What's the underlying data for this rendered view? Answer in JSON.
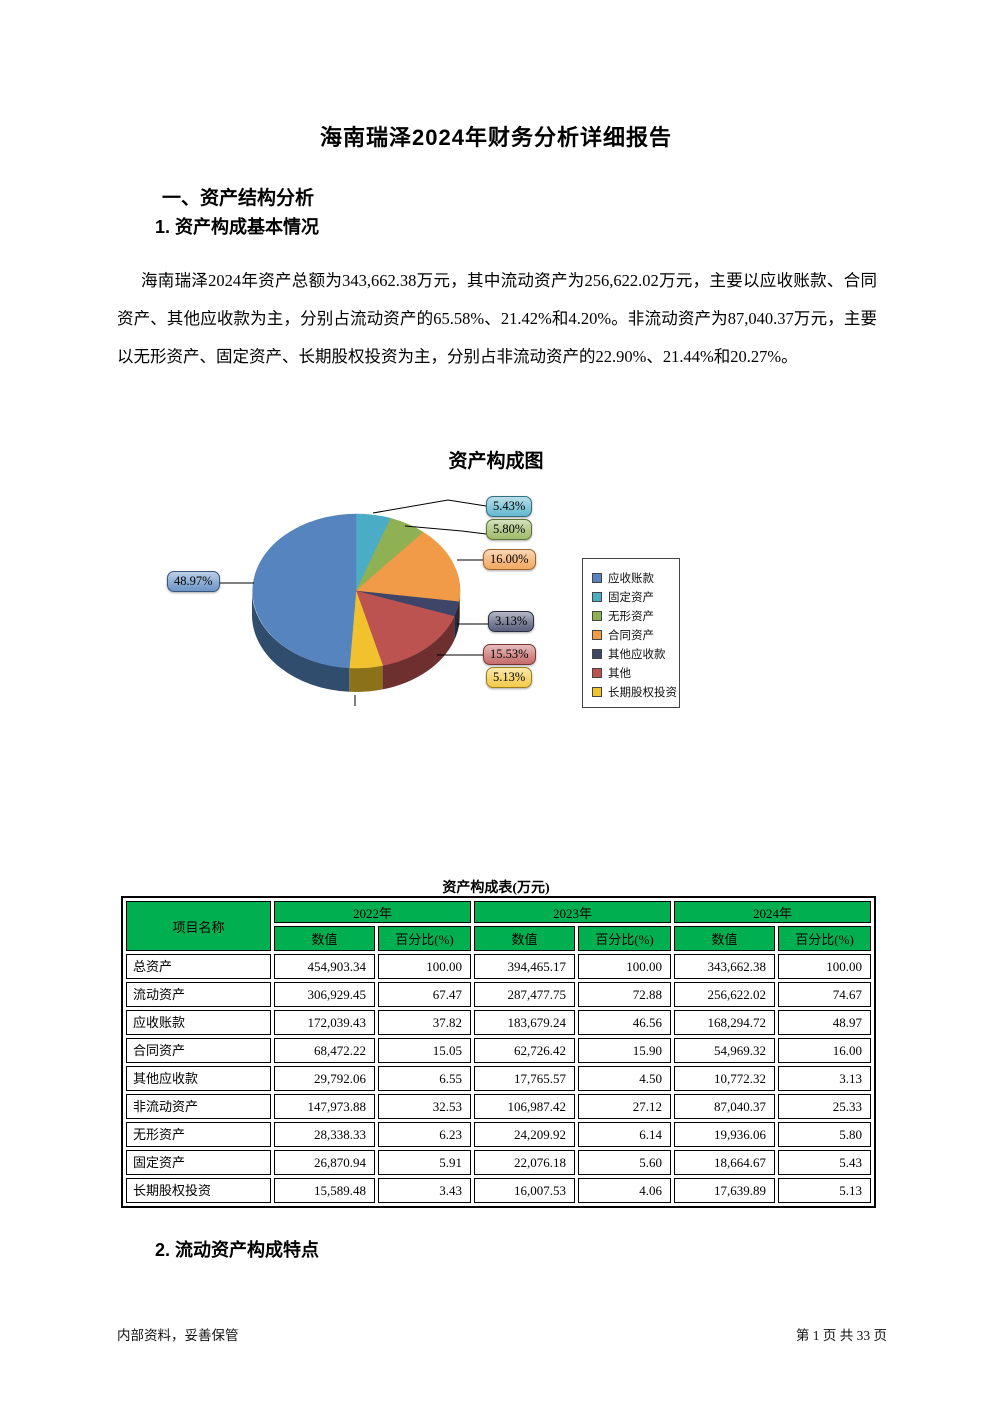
{
  "page": {
    "title": "海南瑞泽2024年财务分析详细报告",
    "section1_heading": "一、资产结构分析",
    "section1_1_heading": "1. 资产构成基本情况",
    "paragraph": "海南瑞泽2024年资产总额为343,662.38万元，其中流动资产为256,622.02万元，主要以应收账款、合同资产、其他应收款为主，分别占流动资产的65.58%、21.42%和4.20%。非流动资产为87,040.37万元，主要以无形资产、固定资产、长期股权投资为主，分别占非流动资产的22.90%、21.44%和20.27%。",
    "section1_2_heading": "2. 流动资产构成特点",
    "footer_left": "内部资料，妥善保管",
    "footer_right": "第 1 页  共 33 页"
  },
  "chart_data": {
    "type": "pie",
    "title": "资产构成图",
    "style": "3d-pie",
    "legend_position": "right",
    "start_angle_deg": 0,
    "slices": [
      {
        "name": "固定资产",
        "pct": 5.43,
        "label": "5.43%",
        "color": "#4BACC6"
      },
      {
        "name": "无形资产",
        "pct": 5.8,
        "label": "5.80%",
        "color": "#8FB153"
      },
      {
        "name": "合同资产",
        "pct": 16.0,
        "label": "16.00%",
        "color": "#F19A47"
      },
      {
        "name": "其他应收款",
        "pct": 3.13,
        "label": "3.13%",
        "color": "#3E4567"
      },
      {
        "name": "其他",
        "pct": 15.53,
        "label": "15.53%",
        "color": "#BC5351"
      },
      {
        "name": "长期股权投资",
        "pct": 5.13,
        "label": "5.13%",
        "color": "#F2C22E"
      },
      {
        "name": "应收账款",
        "pct": 48.97,
        "label": "48.97%",
        "color": "#5584BE"
      }
    ],
    "legend_order": [
      "应收账款",
      "固定资产",
      "无形资产",
      "合同资产",
      "其他应收款",
      "其他",
      "长期股权投资"
    ]
  },
  "table": {
    "title": "资产构成表(万元)",
    "item_header": "项目名称",
    "year_headers": [
      "2022年",
      "2023年",
      "2024年"
    ],
    "sub_headers": [
      "数值",
      "百分比(%)"
    ],
    "header_bg": "#00B050",
    "rows": [
      {
        "item": "总资产",
        "values": [
          "454,903.34",
          "100.00",
          "394,465.17",
          "100.00",
          "343,662.38",
          "100.00"
        ]
      },
      {
        "item": "流动资产",
        "values": [
          "306,929.45",
          "67.47",
          "287,477.75",
          "72.88",
          "256,622.02",
          "74.67"
        ]
      },
      {
        "item": "应收账款",
        "values": [
          "172,039.43",
          "37.82",
          "183,679.24",
          "46.56",
          "168,294.72",
          "48.97"
        ]
      },
      {
        "item": "合同资产",
        "values": [
          "68,472.22",
          "15.05",
          "62,726.42",
          "15.90",
          "54,969.32",
          "16.00"
        ]
      },
      {
        "item": "其他应收款",
        "values": [
          "29,792.06",
          "6.55",
          "17,765.57",
          "4.50",
          "10,772.32",
          "3.13"
        ]
      },
      {
        "item": "非流动资产",
        "values": [
          "147,973.88",
          "32.53",
          "106,987.42",
          "27.12",
          "87,040.37",
          "25.33"
        ]
      },
      {
        "item": "无形资产",
        "values": [
          "28,338.33",
          "6.23",
          "24,209.92",
          "6.14",
          "19,936.06",
          "5.80"
        ]
      },
      {
        "item": "固定资产",
        "values": [
          "26,870.94",
          "5.91",
          "22,076.18",
          "5.60",
          "18,664.67",
          "5.43"
        ]
      },
      {
        "item": "长期股权投资",
        "values": [
          "15,589.48",
          "3.43",
          "16,007.53",
          "4.06",
          "17,639.89",
          "5.13"
        ]
      }
    ]
  }
}
